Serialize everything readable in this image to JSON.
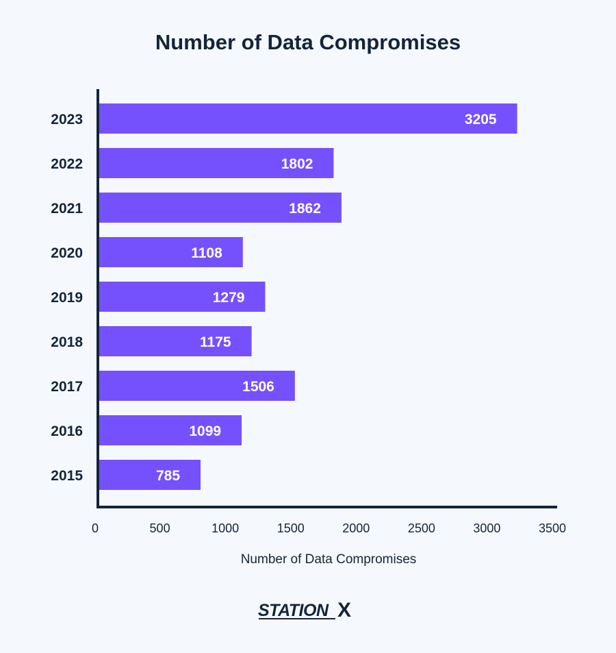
{
  "chart_data": {
    "type": "bar",
    "orientation": "horizontal",
    "title": "Number of Data Compromises",
    "xlabel": "Number of Data Compromises",
    "ylabel": "",
    "categories": [
      "2023",
      "2022",
      "2021",
      "2020",
      "2019",
      "2018",
      "2017",
      "2016",
      "2015"
    ],
    "values": [
      3205,
      1802,
      1862,
      1108,
      1279,
      1175,
      1506,
      1099,
      785
    ],
    "xlim": [
      0,
      3500
    ],
    "xticks": [
      0,
      500,
      1000,
      1500,
      2000,
      2500,
      3000,
      3500
    ],
    "grid": false,
    "legend": "none",
    "bar_color": "#7551fd",
    "data_label_color": "#ffffff",
    "axis_color": "#14243a"
  },
  "brand": {
    "name": "STATIONX",
    "color": "#14243a"
  }
}
